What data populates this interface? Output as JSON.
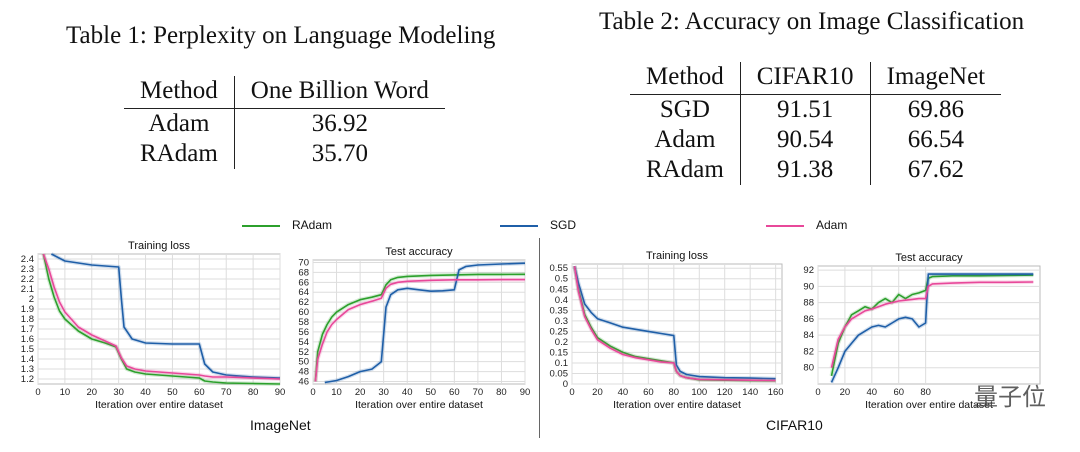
{
  "table1": {
    "caption": "Table 1: Perplexity on Language Modeling",
    "headers": [
      "Method",
      "One Billion Word"
    ],
    "rows": [
      [
        "Adam",
        "36.92"
      ],
      [
        "RAdam",
        "35.70"
      ]
    ]
  },
  "table2": {
    "caption": "Table 2: Accuracy on Image Classification",
    "headers": [
      "Method",
      "CIFAR10",
      "ImageNet"
    ],
    "rows": [
      [
        "SGD",
        "91.51",
        "69.86"
      ],
      [
        "Adam",
        "90.54",
        "66.54"
      ],
      [
        "RAdam",
        "91.38",
        "67.62"
      ]
    ]
  },
  "legend": [
    {
      "label": "RAdam",
      "color": "#2ca02c"
    },
    {
      "label": "SGD",
      "color": "#1f5fa8"
    },
    {
      "label": "Adam",
      "color": "#e8489a"
    }
  ],
  "groups": {
    "left": "ImageNet",
    "right": "CIFAR10"
  },
  "watermark": "量子位",
  "chart_data": [
    {
      "type": "line",
      "title": "Training loss",
      "xlabel": "Iteration over entire dataset",
      "xlim": [
        0,
        90
      ],
      "ylim": [
        1.15,
        2.45
      ],
      "xticks": [
        0,
        10,
        20,
        30,
        40,
        50,
        60,
        70,
        80,
        90
      ],
      "yticks": [
        1.2,
        1.3,
        1.4,
        1.5,
        1.6,
        1.7,
        1.8,
        1.9,
        2,
        2.1,
        2.2,
        2.3,
        2.4
      ],
      "series": [
        {
          "name": "RAdam",
          "x": [
            2,
            4,
            6,
            8,
            10,
            15,
            20,
            25,
            29,
            31,
            33,
            36,
            40,
            50,
            60,
            62,
            65,
            70,
            80,
            90
          ],
          "y": [
            2.45,
            2.2,
            2.02,
            1.88,
            1.8,
            1.68,
            1.6,
            1.56,
            1.52,
            1.4,
            1.3,
            1.27,
            1.25,
            1.23,
            1.21,
            1.18,
            1.17,
            1.16,
            1.155,
            1.15
          ]
        },
        {
          "name": "SGD",
          "x": [
            5,
            10,
            20,
            30,
            31,
            32,
            35,
            40,
            50,
            60,
            62,
            65,
            70,
            80,
            90
          ],
          "y": [
            2.45,
            2.38,
            2.34,
            2.32,
            2.0,
            1.72,
            1.6,
            1.56,
            1.55,
            1.55,
            1.35,
            1.27,
            1.24,
            1.22,
            1.21
          ]
        },
        {
          "name": "Adam",
          "x": [
            2,
            4,
            6,
            8,
            10,
            15,
            20,
            25,
            29,
            31,
            33,
            36,
            40,
            50,
            60,
            62,
            65,
            70,
            80,
            90
          ],
          "y": [
            2.45,
            2.3,
            2.12,
            1.97,
            1.87,
            1.72,
            1.64,
            1.58,
            1.53,
            1.41,
            1.33,
            1.3,
            1.28,
            1.26,
            1.24,
            1.23,
            1.22,
            1.22,
            1.21,
            1.2
          ]
        }
      ]
    },
    {
      "type": "line",
      "title": "Test accuracy",
      "xlabel": "Iteration over entire dataset",
      "xlim": [
        0,
        90
      ],
      "ylim": [
        45.5,
        70.5
      ],
      "xticks": [
        0,
        10,
        20,
        30,
        40,
        50,
        60,
        70,
        80,
        90
      ],
      "yticks": [
        46,
        48,
        50,
        52,
        54,
        56,
        58,
        60,
        62,
        64,
        66,
        68,
        70
      ],
      "series": [
        {
          "name": "RAdam",
          "x": [
            1,
            2,
            4,
            6,
            8,
            10,
            15,
            20,
            25,
            29,
            31,
            33,
            36,
            40,
            50,
            60,
            70,
            80,
            90
          ],
          "y": [
            46,
            52,
            55.5,
            57.5,
            59,
            60,
            61.5,
            62.5,
            63,
            63.5,
            65.5,
            66.5,
            67,
            67.2,
            67.4,
            67.5,
            67.6,
            67.6,
            67.62
          ]
        },
        {
          "name": "SGD",
          "x": [
            5,
            10,
            15,
            20,
            25,
            29,
            31,
            33,
            36,
            40,
            45,
            50,
            55,
            60,
            62,
            65,
            70,
            80,
            90
          ],
          "y": [
            45.8,
            46.2,
            47,
            48,
            48.5,
            50,
            61,
            63.5,
            64.5,
            64.8,
            64.5,
            64.2,
            64.3,
            64.5,
            68.5,
            69.2,
            69.5,
            69.7,
            69.86
          ]
        },
        {
          "name": "Adam",
          "x": [
            1,
            2,
            4,
            6,
            8,
            10,
            15,
            20,
            25,
            29,
            31,
            33,
            36,
            40,
            50,
            60,
            70,
            80,
            90
          ],
          "y": [
            46,
            50.5,
            53.5,
            56,
            57.5,
            58.5,
            60.5,
            61.5,
            62.2,
            62.8,
            64.8,
            65.6,
            66,
            66.2,
            66.4,
            66.5,
            66.5,
            66.54,
            66.54
          ]
        }
      ]
    },
    {
      "type": "line",
      "title": "Training loss",
      "xlabel": "Iteration over entire dataset",
      "xlim": [
        0,
        165
      ],
      "ylim": [
        0,
        0.57
      ],
      "xticks": [
        0,
        20,
        40,
        60,
        80,
        100,
        120,
        140,
        160
      ],
      "yticks": [
        0,
        0.05,
        0.1,
        0.15,
        0.2,
        0.25,
        0.3,
        0.35,
        0.4,
        0.45,
        0.5,
        0.55
      ],
      "series": [
        {
          "name": "RAdam",
          "x": [
            2,
            5,
            10,
            15,
            20,
            30,
            40,
            50,
            60,
            70,
            80,
            82,
            85,
            90,
            100,
            120,
            140,
            160
          ],
          "y": [
            0.56,
            0.45,
            0.33,
            0.27,
            0.22,
            0.18,
            0.15,
            0.13,
            0.12,
            0.11,
            0.1,
            0.06,
            0.04,
            0.03,
            0.02,
            0.018,
            0.016,
            0.015
          ]
        },
        {
          "name": "SGD",
          "x": [
            2,
            5,
            10,
            15,
            20,
            30,
            40,
            50,
            60,
            70,
            80,
            82,
            85,
            90,
            100,
            120,
            140,
            160
          ],
          "y": [
            0.56,
            0.48,
            0.38,
            0.34,
            0.31,
            0.29,
            0.27,
            0.26,
            0.25,
            0.24,
            0.23,
            0.09,
            0.06,
            0.045,
            0.035,
            0.03,
            0.028,
            0.025
          ]
        },
        {
          "name": "Adam",
          "x": [
            2,
            5,
            10,
            15,
            20,
            30,
            40,
            50,
            60,
            70,
            80,
            82,
            85,
            90,
            100,
            120,
            140,
            160
          ],
          "y": [
            0.56,
            0.44,
            0.32,
            0.26,
            0.21,
            0.17,
            0.14,
            0.125,
            0.115,
            0.105,
            0.1,
            0.06,
            0.04,
            0.03,
            0.022,
            0.02,
            0.018,
            0.016
          ]
        }
      ]
    },
    {
      "type": "line",
      "title": "Test accuracy",
      "xlabel": "Iteration over entire dataset",
      "xlim": [
        0,
        165
      ],
      "ylim": [
        78,
        92.5
      ],
      "xticks": [
        0,
        20,
        40,
        60,
        80
      ],
      "yticks": [
        80,
        82,
        84,
        86,
        88,
        90,
        92
      ],
      "series": [
        {
          "name": "RAdam",
          "x": [
            10,
            15,
            20,
            25,
            30,
            35,
            40,
            45,
            50,
            55,
            60,
            65,
            70,
            75,
            80,
            82,
            85,
            100,
            120,
            140,
            160
          ],
          "y": [
            79,
            83,
            85,
            86.5,
            87,
            87.5,
            87.2,
            88,
            88.5,
            88,
            89,
            88.5,
            89,
            89.2,
            89.5,
            91,
            91.2,
            91.3,
            91.3,
            91.35,
            91.38
          ]
        },
        {
          "name": "SGD",
          "x": [
            10,
            15,
            20,
            25,
            30,
            35,
            40,
            45,
            50,
            55,
            60,
            65,
            70,
            75,
            80,
            82,
            85,
            100,
            120,
            140,
            160
          ],
          "y": [
            78.2,
            80,
            82,
            83,
            84,
            84.5,
            85,
            85.2,
            85,
            85.5,
            86,
            86.2,
            86,
            85,
            85.5,
            91.5,
            91.5,
            91.5,
            91.5,
            91.5,
            91.51
          ]
        },
        {
          "name": "Adam",
          "x": [
            10,
            15,
            20,
            25,
            30,
            35,
            40,
            45,
            50,
            55,
            60,
            65,
            70,
            75,
            80,
            82,
            85,
            100,
            120,
            140,
            160
          ],
          "y": [
            80,
            83.5,
            85,
            86,
            86.5,
            87,
            87.2,
            87.5,
            87.8,
            88,
            88.2,
            88.3,
            88.4,
            88.5,
            88.5,
            90,
            90.3,
            90.4,
            90.5,
            90.5,
            90.54
          ]
        }
      ]
    }
  ]
}
